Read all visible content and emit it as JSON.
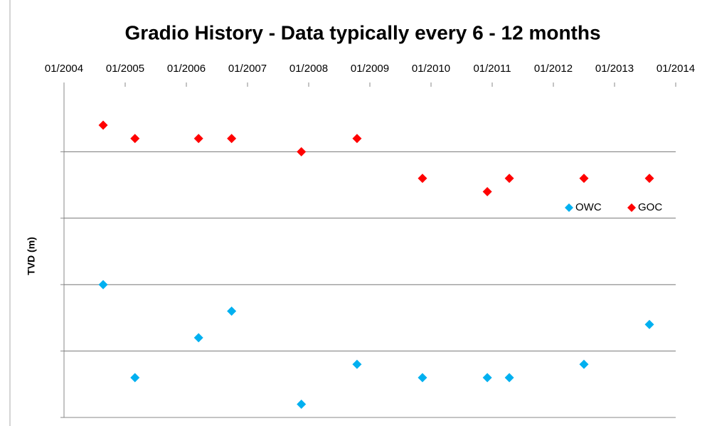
{
  "chart_data": {
    "type": "scatter",
    "title": "Gradio History - Data typically every 6 - 12 months",
    "y_label": "TVD (m)",
    "xlim": [
      2004,
      2014
    ],
    "xticks": [
      {
        "value": 2004,
        "label": "01/2004"
      },
      {
        "value": 2005,
        "label": "01/2005"
      },
      {
        "value": 2006,
        "label": "01/2006"
      },
      {
        "value": 2007,
        "label": "01/2007"
      },
      {
        "value": 2008,
        "label": "01/2008"
      },
      {
        "value": 2009,
        "label": "01/2009"
      },
      {
        "value": 2010,
        "label": "01/2010"
      },
      {
        "value": 2011,
        "label": "01/2011"
      },
      {
        "value": 2012,
        "label": "01/2012"
      },
      {
        "value": 2013,
        "label": "01/2013"
      },
      {
        "value": 2014,
        "label": "01/2014"
      }
    ],
    "ylim": [
      0,
      5
    ],
    "yticks": [
      0,
      1,
      2,
      3,
      4
    ],
    "grid": true,
    "legend": "right",
    "x": [
      2004.64,
      2005.16,
      2006.2,
      2006.74,
      2007.88,
      2008.79,
      2009.86,
      2010.92,
      2011.28,
      2012.5,
      2013.57
    ],
    "series": [
      {
        "name": "OWC",
        "color": "#00b0f0",
        "values": [
          2.0,
          0.6,
          1.2,
          1.6,
          0.2,
          0.8,
          0.6,
          0.6,
          0.6,
          0.8,
          1.4
        ]
      },
      {
        "name": "GOC",
        "color": "#ff0000",
        "values": [
          4.4,
          4.2,
          4.2,
          4.2,
          4.0,
          4.2,
          3.6,
          3.4,
          3.6,
          3.6,
          3.6
        ]
      }
    ]
  }
}
